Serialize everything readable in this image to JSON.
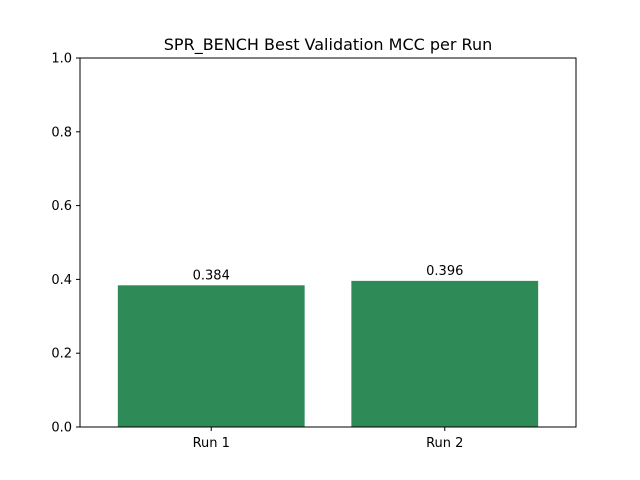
{
  "chart_data": {
    "type": "bar",
    "title": "SPR_BENCH Best Validation MCC per Run",
    "xlabel": "",
    "ylabel": "",
    "categories": [
      "Run 1",
      "Run 2"
    ],
    "values": [
      0.384,
      0.396
    ],
    "data_labels": [
      "0.384",
      "0.396"
    ],
    "ylim": [
      0,
      1.0
    ],
    "yticks": [
      0.0,
      0.2,
      0.4,
      0.6,
      0.8,
      1.0
    ],
    "ytick_labels": [
      "0.0",
      "0.2",
      "0.4",
      "0.6",
      "0.8",
      "1.0"
    ],
    "bar_color": "#2e8b57",
    "grid": false,
    "legend": "none"
  }
}
